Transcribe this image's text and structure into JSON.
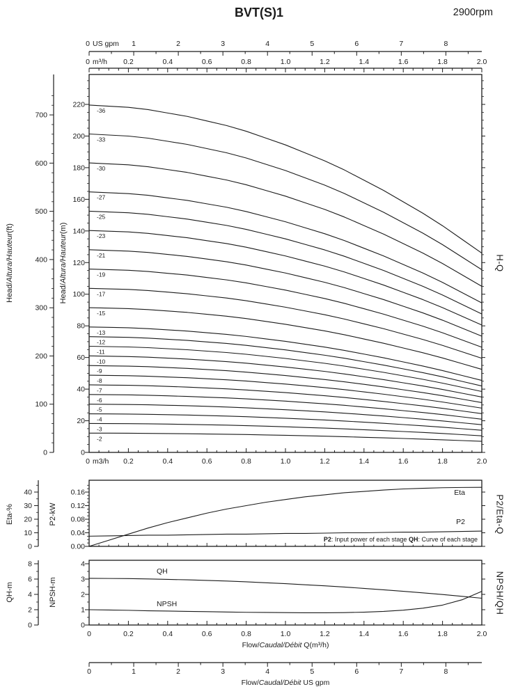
{
  "header": {
    "title": "BVT(S)1",
    "rpm": "2900rpm"
  },
  "axes": {
    "gpm_unit": "US gpm",
    "m3h_unit_sup": "m³/h",
    "m3h_unit_plain": "m3/h"
  },
  "axis_titles": {
    "head_ft": {
      "pre": "Head/",
      "it": "Altura/Hauteur",
      "post": "(ft)"
    },
    "head_m": {
      "pre": "Head/",
      "it": "Altura/Hauteur",
      "post": "(m)"
    },
    "eta": "Eta-%",
    "p2": "P2-kW",
    "qh": "QH-m",
    "npsh": "NPSH-m",
    "flow_m3h": {
      "pre": "Flow/",
      "it": "Caudal/Débit",
      "post": " Q(m³/h)"
    },
    "flow_gpm": {
      "pre": "Flow/",
      "it": "Caudal/Débit",
      "post": " US gpm"
    }
  },
  "panel_labels": {
    "hq": "H-Q",
    "p2eta": "P2/Eta-Q",
    "npshqh": "NPSH/QH"
  },
  "note": {
    "b1": "P2",
    "t1": ": Input power of each stage ",
    "b2": "QH",
    "t2": ": Curve of each stage"
  },
  "chart_data": [
    {
      "type": "line",
      "title": "H-Q",
      "xlabel": "Flow Q (m³/h)",
      "ylabel": "Head (m / ft)",
      "x": [
        0,
        0.1,
        0.2,
        0.3,
        0.4,
        0.5,
        0.6,
        0.7,
        0.8,
        0.9,
        1.0,
        1.1,
        1.2,
        1.3,
        1.4,
        1.5,
        1.6,
        1.7,
        1.8,
        1.9,
        2.0
      ],
      "x_ticks": [
        0,
        0.2,
        0.4,
        0.6,
        0.8,
        1.0,
        1.2,
        1.4,
        1.6,
        1.8,
        2.0
      ],
      "xticks_gpm": [
        0,
        1,
        2,
        3,
        4,
        5,
        6,
        7,
        8
      ],
      "yticks_m": [
        0,
        20,
        40,
        60,
        80,
        100,
        120,
        140,
        160,
        180,
        200,
        220
      ],
      "yticks_ft": [
        0,
        100,
        200,
        300,
        400,
        500,
        600,
        700
      ],
      "xlim_m3h": [
        0,
        2.0
      ],
      "ylim_m": [
        0,
        239
      ],
      "stages": [
        2,
        3,
        4,
        5,
        6,
        7,
        8,
        9,
        10,
        11,
        12,
        13,
        15,
        17,
        19,
        21,
        23,
        25,
        27,
        30,
        33,
        36
      ],
      "head_per_stage_m": [
        6.1,
        6.08,
        6.06,
        6.02,
        5.96,
        5.9,
        5.82,
        5.74,
        5.64,
        5.52,
        5.4,
        5.26,
        5.12,
        4.96,
        4.78,
        4.6,
        4.4,
        4.2,
        3.98,
        3.74,
        3.5
      ],
      "series_rule": "head of curve -N equals N times head_per_stage_m at each flow"
    },
    {
      "type": "line",
      "title": "P2/Eta-Q",
      "x": [
        0,
        0.1,
        0.2,
        0.3,
        0.4,
        0.5,
        0.6,
        0.7,
        0.8,
        0.9,
        1.0,
        1.1,
        1.2,
        1.3,
        1.4,
        1.5,
        1.6,
        1.7,
        1.8,
        1.9,
        2.0
      ],
      "eta_pct": [
        0,
        4.5,
        9.0,
        13.5,
        17.5,
        21.0,
        24.5,
        27.5,
        30.0,
        32.5,
        34.5,
        36.5,
        38.0,
        39.5,
        40.5,
        41.5,
        42.3,
        42.8,
        43.2,
        43.4,
        43.5
      ],
      "p2_kw": [
        0.03,
        0.031,
        0.032,
        0.033,
        0.033,
        0.034,
        0.035,
        0.036,
        0.036,
        0.037,
        0.038,
        0.038,
        0.039,
        0.04,
        0.04,
        0.041,
        0.042,
        0.042,
        0.043,
        0.044,
        0.045
      ],
      "yticks_eta": [
        0,
        10,
        20,
        30,
        40
      ],
      "yticks_p2": [
        0,
        0.04,
        0.08,
        0.12,
        0.16
      ],
      "labels": {
        "eta": "Eta",
        "p2": "P2"
      }
    },
    {
      "type": "line",
      "title": "NPSH/QH",
      "x": [
        0,
        0.1,
        0.2,
        0.3,
        0.4,
        0.5,
        0.6,
        0.7,
        0.8,
        0.9,
        1.0,
        1.1,
        1.2,
        1.3,
        1.4,
        1.5,
        1.6,
        1.7,
        1.8,
        1.9,
        2.0
      ],
      "x_ticks": [
        0,
        0.2,
        0.4,
        0.6,
        0.8,
        1.0,
        1.2,
        1.4,
        1.6,
        1.8,
        2.0
      ],
      "xticks_gpm": [
        0,
        1,
        2,
        3,
        4,
        5,
        6,
        7,
        8
      ],
      "qh_m": [
        6.1,
        6.08,
        6.06,
        6.02,
        5.96,
        5.9,
        5.82,
        5.74,
        5.64,
        5.52,
        5.4,
        5.26,
        5.12,
        4.96,
        4.78,
        4.6,
        4.4,
        4.2,
        3.98,
        3.74,
        3.5
      ],
      "npsh_m": [
        1.0,
        0.98,
        0.96,
        0.93,
        0.91,
        0.89,
        0.87,
        0.85,
        0.83,
        0.82,
        0.81,
        0.8,
        0.8,
        0.81,
        0.84,
        0.89,
        0.97,
        1.1,
        1.3,
        1.65,
        2.2
      ],
      "yticks_qh": [
        0,
        2,
        4,
        6,
        8
      ],
      "yticks_npsh": [
        0,
        1,
        2,
        3,
        4
      ],
      "labels": {
        "qh": "QH",
        "npsh": "NPSH"
      }
    }
  ]
}
